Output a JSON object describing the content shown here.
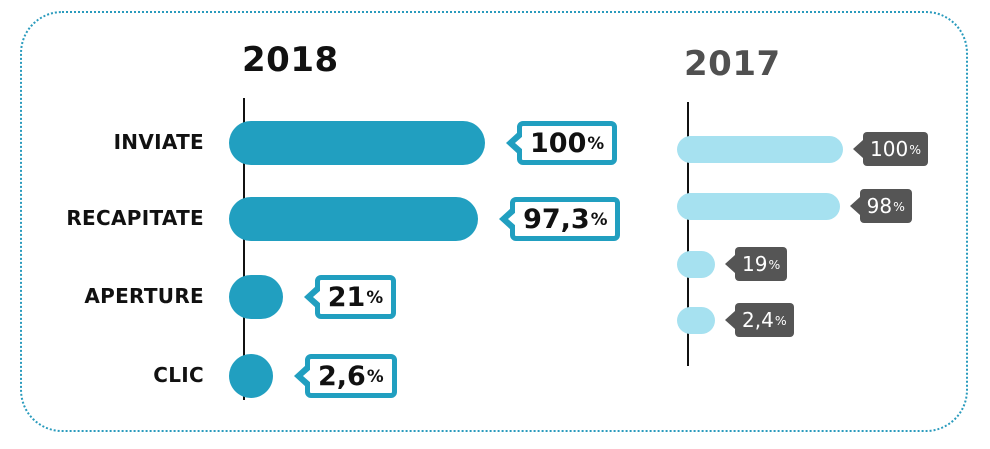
{
  "chart_data": [
    {
      "type": "bar",
      "orientation": "horizontal",
      "title": "2018",
      "categories": [
        "INVIATE",
        "RECAPITATE",
        "APERTURE",
        "CLIC"
      ],
      "values": [
        100,
        97.3,
        21,
        2.6
      ],
      "value_labels": [
        "100",
        "97,3",
        "21",
        "2,6"
      ],
      "unit": "%",
      "xlim": [
        0,
        100
      ],
      "bar_color": "#219fc0",
      "label_style": "white callout with teal border"
    },
    {
      "type": "bar",
      "orientation": "horizontal",
      "title": "2017",
      "categories": [
        "INVIATE",
        "RECAPITATE",
        "APERTURE",
        "CLIC"
      ],
      "values": [
        100,
        98,
        19,
        2.4
      ],
      "value_labels": [
        "100",
        "98",
        "19",
        "2,4"
      ],
      "unit": "%",
      "xlim": [
        0,
        100
      ],
      "bar_color": "#a6e1f0",
      "label_style": "dark grey callout"
    }
  ],
  "colors": {
    "frame": "#2a9bbd",
    "title_2018": "#111111",
    "title_2017": "#505050",
    "callout_2017": "#555555"
  }
}
